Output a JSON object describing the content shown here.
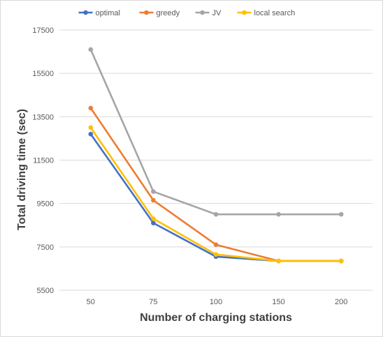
{
  "chart_data": {
    "type": "line",
    "title": "",
    "xlabel": "Number of charging stations",
    "ylabel": "Total driving time (sec)",
    "categories": [
      "50",
      "75",
      "100",
      "150",
      "200"
    ],
    "y_ticks": [
      "5500",
      "7500",
      "9500",
      "11500",
      "13500",
      "15500",
      "17500"
    ],
    "ylim": [
      5500,
      17500
    ],
    "grid": "horizontal",
    "legend_position": "top",
    "series": [
      {
        "name": "optimal",
        "color": "#4472c4",
        "values": [
          12700,
          8600,
          7050,
          6850,
          6850
        ]
      },
      {
        "name": "greedy",
        "color": "#ed7d31",
        "values": [
          13900,
          9650,
          7600,
          6850,
          6850
        ]
      },
      {
        "name": "JV",
        "color": "#a5a5a5",
        "values": [
          16600,
          10050,
          9000,
          9000,
          9000
        ]
      },
      {
        "name": "local search",
        "color": "#ffc000",
        "values": [
          13000,
          8800,
          7150,
          6850,
          6850
        ]
      }
    ]
  }
}
